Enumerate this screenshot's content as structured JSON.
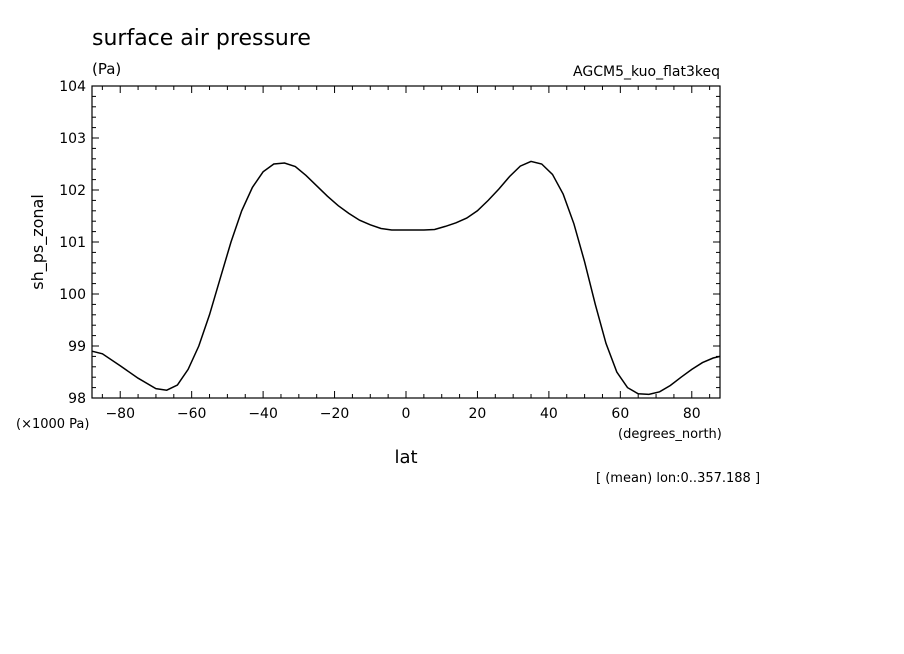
{
  "chart_data": {
    "type": "line",
    "title": "surface air pressure",
    "units": "(Pa)",
    "dataset": "AGCM5_kuo_flat3keq",
    "ylabel": "sh_ps_zonal",
    "yscale_note": "(×1000 Pa)",
    "xlabel": "lat",
    "xunits": "(degrees_north)",
    "footer_note": "[ (mean) lon:0..357.188 ]",
    "xlim": [
      -87.9,
      87.9
    ],
    "ylim": [
      98,
      104
    ],
    "xticks": [
      -80,
      -60,
      -40,
      -20,
      0,
      20,
      40,
      60,
      80
    ],
    "xtick_labels": [
      "−80",
      "−60",
      "−40",
      "−20",
      "0",
      "20",
      "40",
      "60",
      "80"
    ],
    "yticks": [
      98,
      99,
      100,
      101,
      102,
      103,
      104
    ],
    "ytick_labels": [
      "98",
      "99",
      "100",
      "101",
      "102",
      "103",
      "104"
    ],
    "series": [
      {
        "x": [
          -87.9,
          -85,
          -80,
          -75,
          -70,
          -67,
          -64,
          -61,
          -58,
          -55,
          -52,
          -49,
          -46,
          -43,
          -40,
          -37,
          -34,
          -31,
          -28,
          -25,
          -22,
          -19,
          -16,
          -13,
          -10,
          -7,
          -4,
          -1,
          2,
          5,
          8,
          11,
          14,
          17,
          20,
          23,
          26,
          29,
          32,
          35,
          38,
          41,
          44,
          47,
          50,
          53,
          56,
          59,
          62,
          65,
          68,
          71,
          74,
          77,
          80,
          83,
          86,
          87.9
        ],
        "y": [
          98.9,
          98.85,
          98.62,
          98.38,
          98.18,
          98.15,
          98.25,
          98.55,
          99.0,
          99.6,
          100.3,
          101.0,
          101.6,
          102.05,
          102.35,
          102.5,
          102.52,
          102.45,
          102.28,
          102.08,
          101.88,
          101.7,
          101.55,
          101.42,
          101.33,
          101.26,
          101.23,
          101.23,
          101.23,
          101.23,
          101.24,
          101.3,
          101.37,
          101.46,
          101.6,
          101.8,
          102.02,
          102.26,
          102.46,
          102.55,
          102.5,
          102.3,
          101.92,
          101.35,
          100.62,
          99.8,
          99.05,
          98.5,
          98.2,
          98.08,
          98.07,
          98.12,
          98.24,
          98.4,
          98.55,
          98.68,
          98.77,
          98.8
        ]
      }
    ]
  }
}
